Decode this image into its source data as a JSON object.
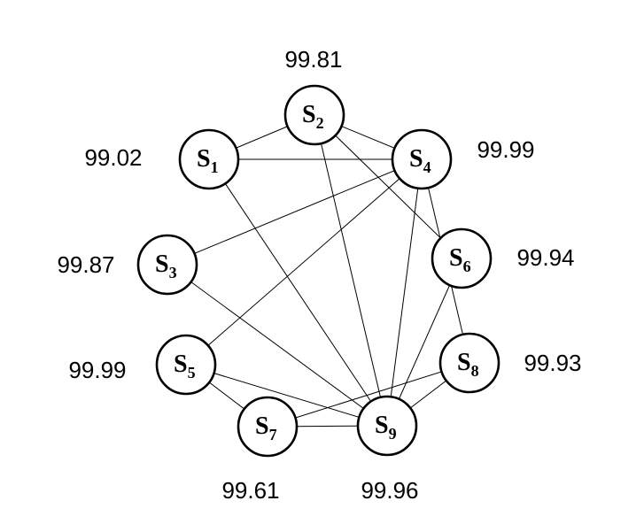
{
  "diagram": {
    "nodes": [
      {
        "id": "S1",
        "letter": "S",
        "index": "1",
        "value": "99.02"
      },
      {
        "id": "S2",
        "letter": "S",
        "index": "2",
        "value": "99.81"
      },
      {
        "id": "S3",
        "letter": "S",
        "index": "3",
        "value": "99.87"
      },
      {
        "id": "S4",
        "letter": "S",
        "index": "4",
        "value": "99.99"
      },
      {
        "id": "S5",
        "letter": "S",
        "index": "5",
        "value": "99.99"
      },
      {
        "id": "S6",
        "letter": "S",
        "index": "6",
        "value": "99.94"
      },
      {
        "id": "S7",
        "letter": "S",
        "index": "7",
        "value": "99.61"
      },
      {
        "id": "S8",
        "letter": "S",
        "index": "8",
        "value": "99.93"
      },
      {
        "id": "S9",
        "letter": "S",
        "index": "9",
        "value": "99.96"
      }
    ],
    "edges": [
      [
        "S1",
        "S2"
      ],
      [
        "S1",
        "S4"
      ],
      [
        "S1",
        "S9"
      ],
      [
        "S2",
        "S4"
      ],
      [
        "S2",
        "S6"
      ],
      [
        "S2",
        "S9"
      ],
      [
        "S3",
        "S4"
      ],
      [
        "S3",
        "S9"
      ],
      [
        "S4",
        "S5"
      ],
      [
        "S4",
        "S9"
      ],
      [
        "S4",
        "S8"
      ],
      [
        "S5",
        "S7"
      ],
      [
        "S5",
        "S9"
      ],
      [
        "S6",
        "S9"
      ],
      [
        "S7",
        "S8"
      ],
      [
        "S7",
        "S9"
      ],
      [
        "S8",
        "S9"
      ]
    ]
  }
}
